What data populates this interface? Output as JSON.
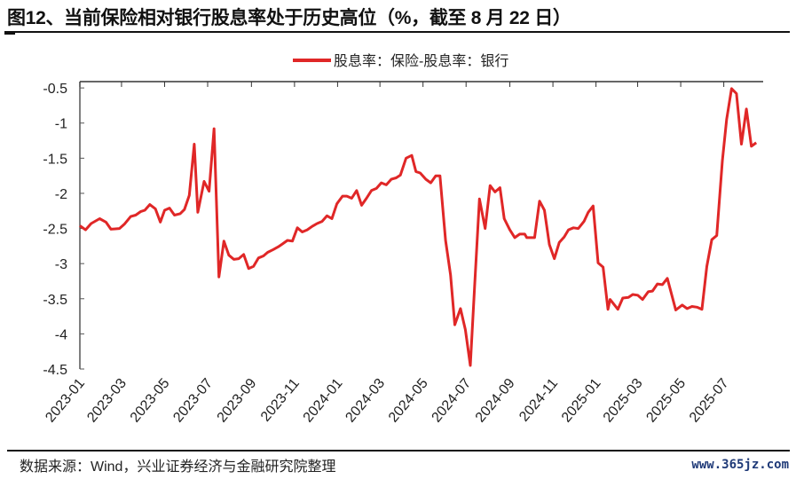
{
  "title": "图12、当前保险相对银行股息率处于历史高位（%，截至 8 月 22 日）",
  "source": "数据来源：Wind，兴业证券经济与金融研究院整理",
  "watermark": "www.365jz.com",
  "chart_data": {
    "type": "line",
    "title": "",
    "xlabel": "",
    "ylabel": "",
    "legend_position": "top-center",
    "grid": false,
    "ylim": [
      -4.5,
      -0.41
    ],
    "xlim": [
      "2023-01-01",
      "2025-08-22"
    ],
    "yticks": [
      "-0.5",
      "-1",
      "-1.5",
      "-2",
      "-2.5",
      "-3",
      "-3.5",
      "-4",
      "-4.5"
    ],
    "xticks": [
      "2023-01",
      "2023-03",
      "2023-05",
      "2023-07",
      "2023-09",
      "2023-11",
      "2024-01",
      "2024-03",
      "2024-05",
      "2024-07",
      "2024-09",
      "2024-11",
      "2025-01",
      "2025-03",
      "2025-05",
      "2025-07"
    ],
    "series": [
      {
        "name": "股息率：保险-股息率：银行",
        "color": "#e02727",
        "x": [
          "2023-01-01",
          "2023-01-09",
          "2023-01-17",
          "2023-01-29",
          "2023-02-07",
          "2023-02-14",
          "2023-02-26",
          "2023-03-05",
          "2023-03-14",
          "2023-03-21",
          "2023-03-28",
          "2023-04-03",
          "2023-04-10",
          "2023-04-18",
          "2023-04-25",
          "2023-05-01",
          "2023-05-08",
          "2023-05-15",
          "2023-05-23",
          "2023-05-29",
          "2023-06-05",
          "2023-06-12",
          "2023-06-17",
          "2023-06-26",
          "2023-07-03",
          "2023-07-10",
          "2023-07-17",
          "2023-07-24",
          "2023-07-31",
          "2023-08-07",
          "2023-08-14",
          "2023-08-21",
          "2023-08-28",
          "2023-09-04",
          "2023-09-11",
          "2023-09-18",
          "2023-09-24",
          "2023-10-02",
          "2023-10-09",
          "2023-10-15",
          "2023-10-22",
          "2023-10-29",
          "2023-11-05",
          "2023-11-12",
          "2023-11-19",
          "2023-11-26",
          "2023-12-03",
          "2023-12-10",
          "2023-12-17",
          "2023-12-24",
          "2023-12-31",
          "2024-01-08",
          "2024-01-14",
          "2024-01-21",
          "2024-01-28",
          "2024-02-04",
          "2024-02-11",
          "2024-02-18",
          "2024-02-25",
          "2024-03-03",
          "2024-03-10",
          "2024-03-17",
          "2024-03-24",
          "2024-03-30",
          "2024-04-07",
          "2024-04-15",
          "2024-04-21",
          "2024-04-27",
          "2024-05-05",
          "2024-05-12",
          "2024-05-19",
          "2024-05-25",
          "2024-06-02",
          "2024-06-09",
          "2024-06-15",
          "2024-06-23",
          "2024-06-30",
          "2024-07-07",
          "2024-07-13",
          "2024-07-20",
          "2024-07-28",
          "2024-08-04",
          "2024-08-11",
          "2024-08-18",
          "2024-08-24",
          "2024-09-01",
          "2024-09-08",
          "2024-09-15",
          "2024-09-22",
          "2024-09-25",
          "2024-10-06",
          "2024-10-13",
          "2024-10-20",
          "2024-10-27",
          "2024-11-03",
          "2024-11-10",
          "2024-11-17",
          "2024-11-23",
          "2024-11-30",
          "2024-12-07",
          "2024-12-15",
          "2024-12-21",
          "2024-12-28",
          "2025-01-04",
          "2025-01-11",
          "2025-01-18",
          "2025-01-21",
          "2025-02-01",
          "2025-02-08",
          "2025-02-16",
          "2025-02-22",
          "2025-03-01",
          "2025-03-08",
          "2025-03-16",
          "2025-03-22",
          "2025-03-29",
          "2025-04-05",
          "2025-04-12",
          "2025-04-24",
          "2025-05-03",
          "2025-05-10",
          "2025-05-17",
          "2025-05-24",
          "2025-05-31",
          "2025-06-07",
          "2025-06-14",
          "2025-06-21",
          "2025-06-29",
          "2025-07-05",
          "2025-07-12",
          "2025-07-19",
          "2025-07-26",
          "2025-08-02",
          "2025-08-09",
          "2025-08-16"
        ],
        "values": [
          -2.46,
          -2.52,
          -2.43,
          -2.36,
          -2.41,
          -2.51,
          -2.5,
          -2.44,
          -2.33,
          -2.31,
          -2.26,
          -2.24,
          -2.16,
          -2.22,
          -2.41,
          -2.24,
          -2.21,
          -2.31,
          -2.29,
          -2.23,
          -2.03,
          -1.3,
          -2.27,
          -1.83,
          -1.97,
          -1.08,
          -3.19,
          -2.68,
          -2.88,
          -2.94,
          -2.93,
          -2.87,
          -3.07,
          -3.04,
          -2.92,
          -2.89,
          -2.84,
          -2.8,
          -2.76,
          -2.72,
          -2.67,
          -2.68,
          -2.49,
          -2.55,
          -2.52,
          -2.47,
          -2.43,
          -2.4,
          -2.32,
          -2.36,
          -2.15,
          -2.04,
          -2.04,
          -2.07,
          -1.96,
          -2.17,
          -2.07,
          -1.96,
          -1.93,
          -1.85,
          -1.88,
          -1.8,
          -1.78,
          -1.74,
          -1.5,
          -1.46,
          -1.69,
          -1.71,
          -1.8,
          -1.85,
          -1.75,
          -1.75,
          -2.67,
          -3.16,
          -3.87,
          -3.64,
          -3.94,
          -4.45,
          -3.33,
          -2.08,
          -2.5,
          -1.89,
          -1.98,
          -1.92,
          -2.36,
          -2.52,
          -2.63,
          -2.58,
          -2.58,
          -2.63,
          -2.63,
          -2.11,
          -2.24,
          -2.73,
          -2.93,
          -2.7,
          -2.62,
          -2.52,
          -2.49,
          -2.5,
          -2.4,
          -2.27,
          -2.18,
          -2.99,
          -3.05,
          -3.65,
          -3.51,
          -3.65,
          -3.49,
          -3.48,
          -3.44,
          -3.45,
          -3.51,
          -3.4,
          -3.39,
          -3.29,
          -3.3,
          -3.21,
          -3.66,
          -3.59,
          -3.64,
          -3.61,
          -3.62,
          -3.65,
          -3.04,
          -2.66,
          -2.6,
          -1.54,
          -0.95,
          -0.51,
          -0.58,
          -1.3,
          -0.8,
          -1.33,
          -1.28
        ]
      }
    ]
  }
}
